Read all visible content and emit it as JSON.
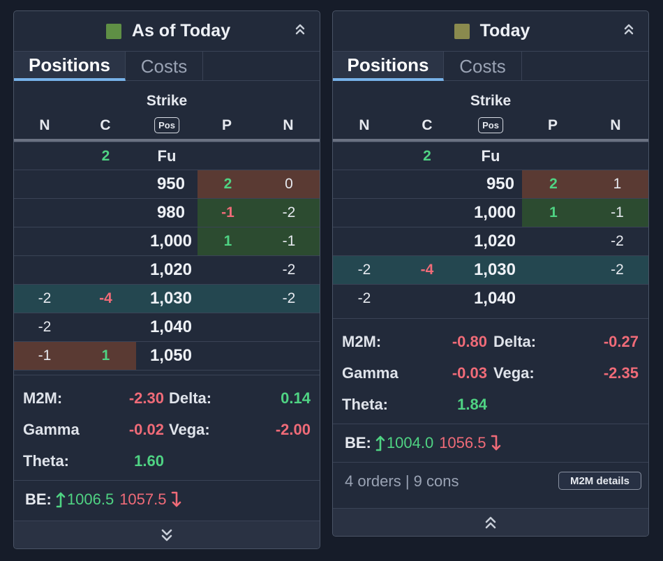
{
  "panel_left": {
    "title": "As of Today",
    "swatch_color": "#5f8f45",
    "tabs": {
      "active": "Positions",
      "inactive": "Costs"
    },
    "columns": {
      "n_left": "N",
      "c": "C",
      "strike": "Strike",
      "pos": "Pos",
      "p": "P",
      "n_right": "N"
    },
    "fu_row": {
      "c": "2",
      "strike": "Fu"
    },
    "rows": [
      {
        "strike": "950",
        "n_left": "",
        "c": "",
        "p": "2",
        "n_right": "0"
      },
      {
        "strike": "980",
        "n_left": "",
        "c": "",
        "p": "-1",
        "n_right": "-2"
      },
      {
        "strike": "1,000",
        "n_left": "",
        "c": "",
        "p": "1",
        "n_right": "-1"
      },
      {
        "strike": "1,020",
        "n_left": "",
        "c": "",
        "p": "",
        "n_right": "-2"
      },
      {
        "strike": "1,030",
        "n_left": "-2",
        "c": "-4",
        "p": "",
        "n_right": "-2"
      },
      {
        "strike": "1,040",
        "n_left": "-2",
        "c": "",
        "p": "",
        "n_right": ""
      },
      {
        "strike": "1,050",
        "n_left": "-1",
        "c": "1",
        "p": "",
        "n_right": ""
      }
    ],
    "stats": {
      "m2m_label": "M2M:",
      "m2m_value": "-2.30",
      "delta_label": "Delta:",
      "delta_value": "0.14",
      "gamma_label": "Gamma",
      "gamma_value": "-0.02",
      "vega_label": "Vega:",
      "vega_value": "-2.00",
      "theta_label": "Theta:",
      "theta_value": "1.60"
    },
    "be": {
      "label": "BE:",
      "up_value": "1006.5",
      "down_value": "1057.5"
    }
  },
  "panel_right": {
    "title": "Today",
    "swatch_color": "#8a8a4e",
    "tabs": {
      "active": "Positions",
      "inactive": "Costs"
    },
    "columns": {
      "n_left": "N",
      "c": "C",
      "strike": "Strike",
      "pos": "Pos",
      "p": "P",
      "n_right": "N"
    },
    "fu_row": {
      "c": "2",
      "strike": "Fu"
    },
    "rows": [
      {
        "strike": "950",
        "n_left": "",
        "c": "",
        "p": "2",
        "n_right": "1"
      },
      {
        "strike": "1,000",
        "n_left": "",
        "c": "",
        "p": "1",
        "n_right": "-1"
      },
      {
        "strike": "1,020",
        "n_left": "",
        "c": "",
        "p": "",
        "n_right": "-2"
      },
      {
        "strike": "1,030",
        "n_left": "-2",
        "c": "-4",
        "p": "",
        "n_right": "-2"
      },
      {
        "strike": "1,040",
        "n_left": "-2",
        "c": "",
        "p": "",
        "n_right": ""
      }
    ],
    "stats": {
      "m2m_label": "M2M:",
      "m2m_value": "-0.80",
      "delta_label": "Delta:",
      "delta_value": "-0.27",
      "gamma_label": "Gamma",
      "gamma_value": "-0.03",
      "vega_label": "Vega:",
      "vega_value": "-2.35",
      "theta_label": "Theta:",
      "theta_value": "1.84"
    },
    "be": {
      "label": "BE:",
      "up_value": "1004.0",
      "down_value": "1056.5"
    },
    "footer": {
      "info": "4 orders | 9 cons",
      "button": "M2M details"
    }
  },
  "colors": {
    "positive": "#4fd383",
    "negative": "#f06b78",
    "accent_tab": "#77b2e8"
  },
  "icons": {
    "collapse": "double-chevron-up-icon",
    "expand": "double-chevron-down-icon",
    "be_up": "arrow-up-icon",
    "be_down": "arrow-down-icon"
  }
}
